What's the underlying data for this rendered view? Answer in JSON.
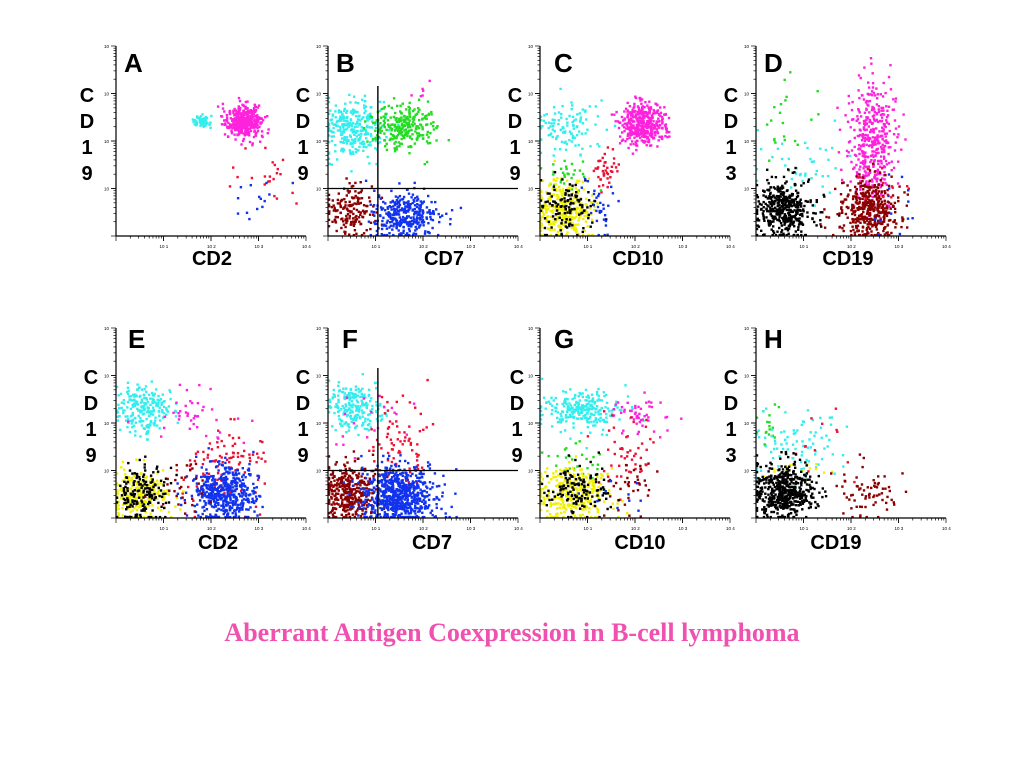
{
  "title": "Aberrant Antigen Coexpression in B-cell lymphoma",
  "colors": {
    "cyan": "#33eeee",
    "magenta": "#ff22dd",
    "green": "#22dd22",
    "red": "#ee1133",
    "blue": "#1133ee",
    "black": "#000000",
    "darkred": "#8b0000",
    "yellow": "#f0f000",
    "title": "#f050b0"
  },
  "chart_data": [
    {
      "type": "scatter",
      "panel": "A",
      "xlabel": "CD2",
      "ylabel": "CD19",
      "xscale": "log",
      "yscale": "log",
      "xlim": [
        1,
        10000
      ],
      "ylim": [
        1,
        10000
      ],
      "quadrant": null,
      "series": [
        {
          "color": "cyan",
          "count": 60,
          "cx": [
            1.8,
            0.08
          ],
          "cy": [
            2.4,
            0.06
          ]
        },
        {
          "color": "magenta",
          "count": 420,
          "cx": [
            2.7,
            0.18
          ],
          "cy": [
            2.42,
            0.17
          ]
        },
        {
          "color": "red",
          "count": 22,
          "cx": [
            3.2,
            0.45
          ],
          "cy": [
            1.4,
            0.3
          ]
        },
        {
          "color": "blue",
          "count": 14,
          "cx": [
            3.2,
            0.3
          ],
          "cy": [
            0.7,
            0.3
          ]
        }
      ]
    },
    {
      "type": "scatter",
      "panel": "B",
      "xlabel": "CD7",
      "ylabel": "CD19",
      "xscale": "log",
      "yscale": "log",
      "xlim": [
        1,
        10000
      ],
      "ylim": [
        1,
        10000
      ],
      "quadrant": [
        1.05,
        1.0
      ],
      "series": [
        {
          "color": "cyan",
          "count": 280,
          "cx": [
            0.55,
            0.32
          ],
          "cy": [
            2.25,
            0.3
          ]
        },
        {
          "color": "green",
          "count": 260,
          "cx": [
            1.6,
            0.3
          ],
          "cy": [
            2.3,
            0.25
          ]
        },
        {
          "color": "darkred",
          "count": 160,
          "cx": [
            0.45,
            0.28
          ],
          "cy": [
            0.55,
            0.3
          ]
        },
        {
          "color": "blue",
          "count": 320,
          "cx": [
            1.6,
            0.35
          ],
          "cy": [
            0.45,
            0.25
          ]
        },
        {
          "color": "magenta",
          "count": 6,
          "cx": [
            1.9,
            0.2
          ],
          "cy": [
            3.0,
            0.2
          ]
        }
      ]
    },
    {
      "type": "scatter",
      "panel": "C",
      "xlabel": "CD10",
      "ylabel": "CD19",
      "xscale": "log",
      "yscale": "log",
      "xlim": [
        1,
        10000
      ],
      "ylim": [
        1,
        10000
      ],
      "quadrant": null,
      "series": [
        {
          "color": "cyan",
          "count": 110,
          "cx": [
            0.6,
            0.35
          ],
          "cy": [
            2.3,
            0.3
          ]
        },
        {
          "color": "magenta",
          "count": 420,
          "cx": [
            2.15,
            0.25
          ],
          "cy": [
            2.35,
            0.22
          ]
        },
        {
          "color": "red",
          "count": 40,
          "cx": [
            1.35,
            0.15
          ],
          "cy": [
            1.4,
            0.2
          ]
        },
        {
          "color": "green",
          "count": 30,
          "cx": [
            0.7,
            0.3
          ],
          "cy": [
            1.3,
            0.2
          ]
        },
        {
          "color": "yellow",
          "count": 340,
          "cx": [
            0.5,
            0.3
          ],
          "cy": [
            0.55,
            0.3
          ]
        },
        {
          "color": "black",
          "count": 120,
          "cx": [
            0.55,
            0.3
          ],
          "cy": [
            0.6,
            0.3
          ]
        },
        {
          "color": "blue",
          "count": 30,
          "cx": [
            1.25,
            0.15
          ],
          "cy": [
            0.6,
            0.35
          ]
        }
      ]
    },
    {
      "type": "scatter",
      "panel": "D",
      "xlabel": "CD19",
      "ylabel": "CD13",
      "xscale": "log",
      "yscale": "log",
      "xlim": [
        1,
        10000
      ],
      "ylim": [
        1,
        10000
      ],
      "quadrant": null,
      "series": [
        {
          "color": "green",
          "count": 22,
          "cx": [
            0.6,
            0.35
          ],
          "cy": [
            2.4,
            0.5
          ]
        },
        {
          "color": "cyan",
          "count": 40,
          "cx": [
            0.9,
            0.5
          ],
          "cy": [
            1.5,
            0.4
          ]
        },
        {
          "color": "magenta",
          "count": 420,
          "cx": [
            2.45,
            0.25
          ],
          "cy": [
            1.9,
            0.6
          ]
        },
        {
          "color": "black",
          "count": 420,
          "cx": [
            0.6,
            0.28
          ],
          "cy": [
            0.55,
            0.28
          ]
        },
        {
          "color": "darkred",
          "count": 420,
          "cx": [
            2.4,
            0.3
          ],
          "cy": [
            0.55,
            0.32
          ]
        },
        {
          "color": "red",
          "count": 12,
          "cx": [
            2.6,
            0.3
          ],
          "cy": [
            1.1,
            0.2
          ]
        },
        {
          "color": "blue",
          "count": 14,
          "cx": [
            2.9,
            0.35
          ],
          "cy": [
            0.6,
            0.4
          ]
        }
      ]
    },
    {
      "type": "scatter",
      "panel": "E",
      "xlabel": "CD2",
      "ylabel": "CD19",
      "xscale": "log",
      "yscale": "log",
      "xlim": [
        1,
        10000
      ],
      "ylim": [
        1,
        10000
      ],
      "quadrant": null,
      "series": [
        {
          "color": "cyan",
          "count": 220,
          "cx": [
            0.55,
            0.3
          ],
          "cy": [
            2.3,
            0.25
          ]
        },
        {
          "color": "magenta",
          "count": 40,
          "cx": [
            1.6,
            0.45
          ],
          "cy": [
            2.2,
            0.4
          ]
        },
        {
          "color": "red",
          "count": 110,
          "cx": [
            2.4,
            0.45
          ],
          "cy": [
            1.1,
            0.4
          ]
        },
        {
          "color": "yellow",
          "count": 230,
          "cx": [
            0.5,
            0.3
          ],
          "cy": [
            0.45,
            0.28
          ]
        },
        {
          "color": "black",
          "count": 160,
          "cx": [
            0.55,
            0.3
          ],
          "cy": [
            0.5,
            0.28
          ]
        },
        {
          "color": "blue",
          "count": 480,
          "cx": [
            2.3,
            0.32
          ],
          "cy": [
            0.5,
            0.3
          ]
        },
        {
          "color": "darkred",
          "count": 30,
          "cx": [
            1.4,
            0.3
          ],
          "cy": [
            0.6,
            0.3
          ]
        }
      ]
    },
    {
      "type": "scatter",
      "panel": "F",
      "xlabel": "CD7",
      "ylabel": "CD19",
      "xscale": "log",
      "yscale": "log",
      "xlim": [
        1,
        10000
      ],
      "ylim": [
        1,
        10000
      ],
      "quadrant": [
        1.05,
        1.0
      ],
      "series": [
        {
          "color": "cyan",
          "count": 220,
          "cx": [
            0.55,
            0.3
          ],
          "cy": [
            2.3,
            0.25
          ]
        },
        {
          "color": "magenta",
          "count": 20,
          "cx": [
            0.9,
            0.4
          ],
          "cy": [
            2.0,
            0.4
          ]
        },
        {
          "color": "red",
          "count": 80,
          "cx": [
            1.5,
            0.35
          ],
          "cy": [
            1.5,
            0.5
          ]
        },
        {
          "color": "darkred",
          "count": 380,
          "cx": [
            0.45,
            0.3
          ],
          "cy": [
            0.55,
            0.3
          ]
        },
        {
          "color": "blue",
          "count": 700,
          "cx": [
            1.5,
            0.38
          ],
          "cy": [
            0.5,
            0.3
          ]
        }
      ]
    },
    {
      "type": "scatter",
      "panel": "G",
      "xlabel": "CD10",
      "ylabel": "CD19",
      "xscale": "log",
      "yscale": "log",
      "xlim": [
        1,
        10000
      ],
      "ylim": [
        1,
        10000
      ],
      "quadrant": null,
      "series": [
        {
          "color": "cyan",
          "count": 240,
          "cx": [
            0.9,
            0.4
          ],
          "cy": [
            2.3,
            0.2
          ]
        },
        {
          "color": "magenta",
          "count": 50,
          "cx": [
            2.1,
            0.3
          ],
          "cy": [
            2.2,
            0.2
          ]
        },
        {
          "color": "red",
          "count": 50,
          "cx": [
            1.8,
            0.35
          ],
          "cy": [
            1.4,
            0.4
          ]
        },
        {
          "color": "green",
          "count": 25,
          "cx": [
            0.8,
            0.4
          ],
          "cy": [
            1.2,
            0.2
          ]
        },
        {
          "color": "yellow",
          "count": 300,
          "cx": [
            0.7,
            0.38
          ],
          "cy": [
            0.5,
            0.3
          ]
        },
        {
          "color": "black",
          "count": 130,
          "cx": [
            0.8,
            0.35
          ],
          "cy": [
            0.6,
            0.28
          ]
        },
        {
          "color": "darkred",
          "count": 35,
          "cx": [
            1.9,
            0.3
          ],
          "cy": [
            0.7,
            0.3
          ]
        },
        {
          "color": "blue",
          "count": 10,
          "cx": [
            1.6,
            0.3
          ],
          "cy": [
            0.4,
            0.3
          ]
        }
      ]
    },
    {
      "type": "scatter",
      "panel": "H",
      "xlabel": "CD19",
      "ylabel": "CD13",
      "xscale": "log",
      "yscale": "log",
      "xlim": [
        1,
        10000
      ],
      "ylim": [
        1,
        10000
      ],
      "quadrant": null,
      "series": [
        {
          "color": "green",
          "count": 18,
          "cx": [
            0.2,
            0.15
          ],
          "cy": [
            2.0,
            0.3
          ]
        },
        {
          "color": "cyan",
          "count": 90,
          "cx": [
            0.8,
            0.5
          ],
          "cy": [
            1.5,
            0.35
          ]
        },
        {
          "color": "red",
          "count": 12,
          "cx": [
            1.6,
            0.4
          ],
          "cy": [
            1.6,
            0.3
          ]
        },
        {
          "color": "yellow",
          "count": 20,
          "cx": [
            0.7,
            0.4
          ],
          "cy": [
            1.0,
            0.1
          ]
        },
        {
          "color": "black",
          "count": 520,
          "cx": [
            0.6,
            0.3
          ],
          "cy": [
            0.55,
            0.28
          ]
        },
        {
          "color": "darkred",
          "count": 70,
          "cx": [
            2.35,
            0.3
          ],
          "cy": [
            0.5,
            0.3
          ]
        }
      ]
    }
  ]
}
